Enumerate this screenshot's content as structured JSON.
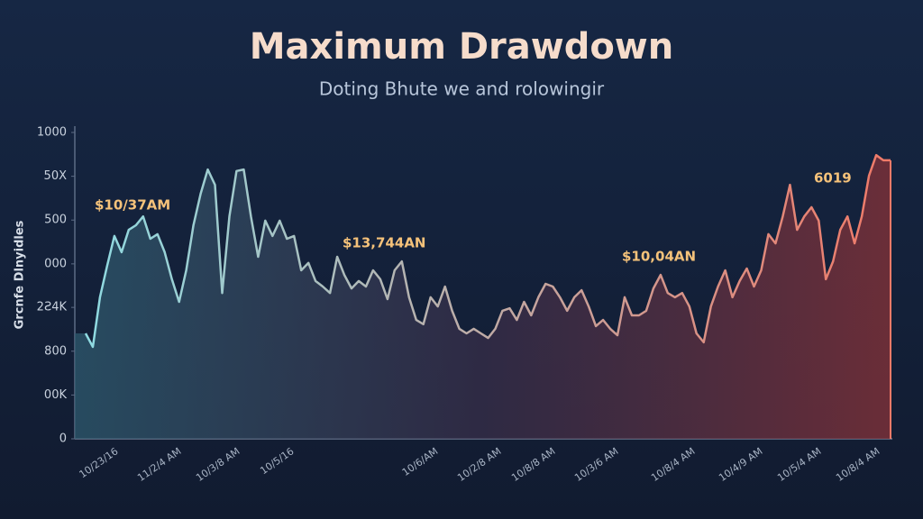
{
  "chart_data": {
    "type": "line",
    "title": "Maximum Drawdown",
    "subtitle": "Doting Bhute we and rolowingir",
    "ylabel": "Grcnfe Dlnyidles",
    "ylim": [
      0,
      1000
    ],
    "yticks": [
      0,
      {
        "value": 143,
        "label": "00K"
      },
      {
        "value": 286,
        "label": "800"
      },
      {
        "value": 429,
        "label": "2Ƨ4K"
      },
      {
        "value": 571,
        "label": "000"
      },
      {
        "value": 714,
        "label": "500"
      },
      {
        "value": 857,
        "label": "50X"
      },
      1000
    ],
    "grid": false,
    "xtick_labels": [
      "10/23/16",
      "11/2/4 AM",
      "10/3/8 AM",
      "10/5/16",
      "10/6/AM",
      "10/2/8 AM",
      "10/8/8 AM",
      "10/3/6 AM",
      "10/8/4 AM",
      "10/4/9 AM",
      "10/5/4 AM",
      "10/8/4 AM"
    ],
    "annotations": [
      "$10/37AM",
      "$13,744AN",
      "$10,04AN",
      "6019"
    ],
    "color_start": "#8fdbe2",
    "color_end": "#f07a68",
    "values": [
      344,
      300,
      462,
      565,
      662,
      609,
      682,
      697,
      726,
      653,
      668,
      609,
      521,
      447,
      550,
      697,
      800,
      879,
      829,
      476,
      726,
      874,
      879,
      726,
      594,
      712,
      662,
      712,
      653,
      662,
      550,
      574,
      515,
      497,
      476,
      594,
      535,
      491,
      515,
      497,
      550,
      521,
      456,
      550,
      579,
      462,
      388,
      374,
      462,
      432,
      497,
      418,
      359,
      344,
      359,
      344,
      329,
      359,
      418,
      426,
      388,
      447,
      403,
      462,
      506,
      497,
      462,
      418,
      462,
      485,
      432,
      368,
      388,
      359,
      338,
      462,
      403,
      403,
      418,
      491,
      535,
      476,
      462,
      476,
      432,
      344,
      315,
      432,
      497,
      550,
      462,
      515,
      556,
      497,
      550,
      668,
      638,
      726,
      829,
      682,
      726,
      756,
      712,
      521,
      579,
      682,
      726,
      638,
      726,
      859,
      926,
      909,
      909
    ]
  }
}
